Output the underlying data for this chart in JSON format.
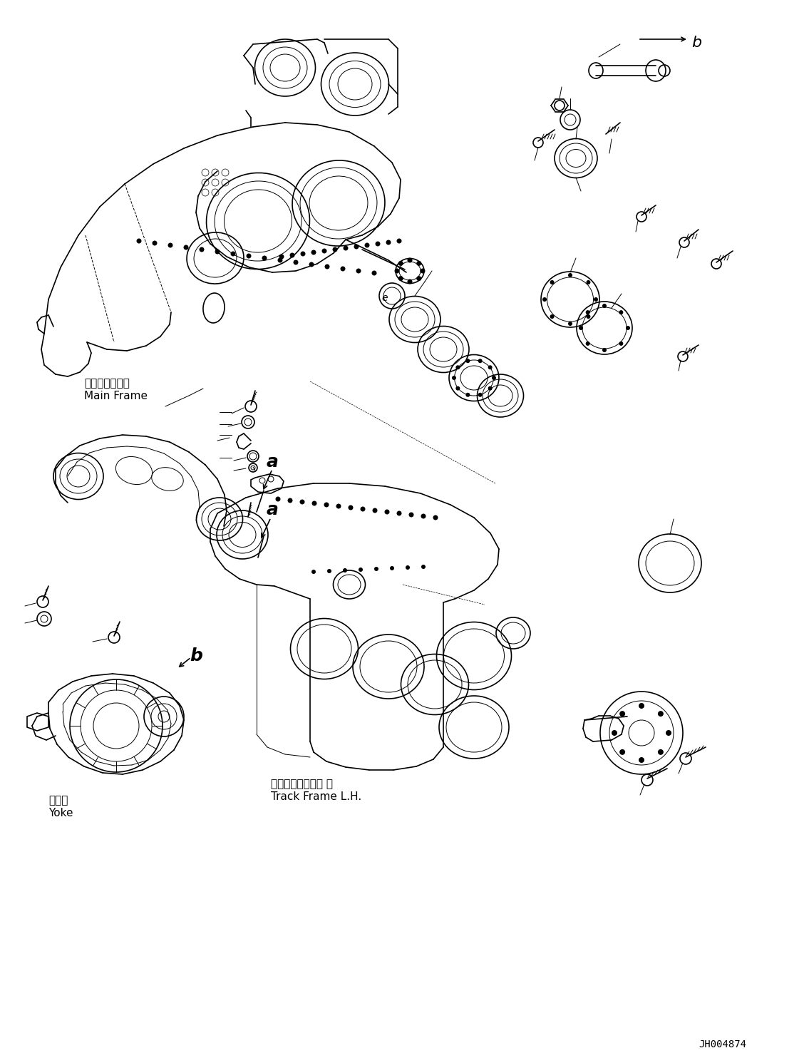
{
  "background_color": "#ffffff",
  "page_code": "JH004874",
  "line_color": "#000000",
  "labels": {
    "main_frame_jp": "メインフレーム",
    "main_frame_en": "Main Frame",
    "track_frame_jp": "トラックフレーム 左",
    "track_frame_en": "Track Frame L.H.",
    "yoke_jp": "ヨーク",
    "yoke_en": "Yoke"
  },
  "figsize": [
    11.35,
    14.91
  ],
  "dpi": 100
}
